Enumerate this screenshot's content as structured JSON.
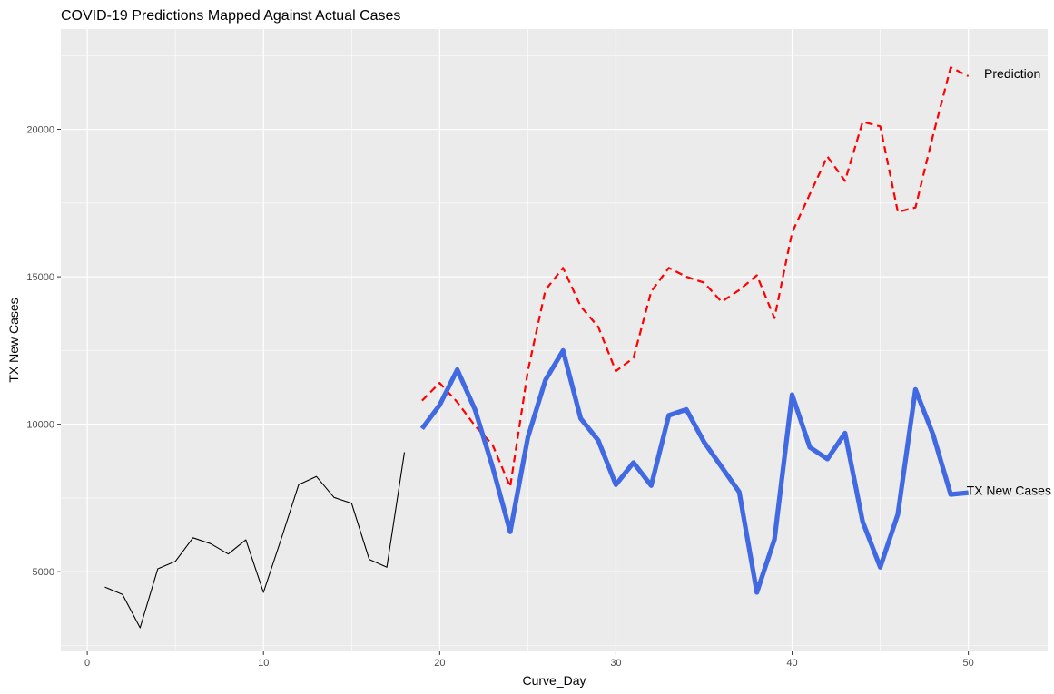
{
  "chart_data": {
    "type": "line",
    "title": "COVID-19 Predictions Mapped Against Actual Cases",
    "xlabel": "Curve_Day",
    "ylabel": "TX New Cases",
    "xlim": [
      -1.5,
      54.5
    ],
    "ylim": [
      2300,
      23400
    ],
    "x_ticks": [
      0,
      10,
      20,
      30,
      40,
      50
    ],
    "x_tick_labels": [
      "0",
      "10",
      "20",
      "30",
      "40",
      "50"
    ],
    "y_ticks": [
      5000,
      10000,
      15000,
      20000
    ],
    "y_tick_labels": [
      "5000",
      "10000",
      "15000",
      "20000"
    ],
    "grid": true,
    "legend": "none",
    "series": [
      {
        "color": "#000000",
        "style": "solid",
        "width": "thin",
        "x": [
          1,
          2,
          3,
          4,
          5,
          6,
          7,
          8,
          9,
          10,
          11,
          12,
          13,
          14,
          15,
          16,
          17,
          18
        ],
        "y": [
          4480,
          4230,
          3100,
          5100,
          5350,
          6150,
          5950,
          5600,
          6080,
          4300,
          6100,
          7950,
          8230,
          7520,
          7320,
          5420,
          5150,
          9050
        ]
      },
      {
        "name": "Prediction",
        "color": "#ff0000",
        "style": "dashed",
        "width": "medium",
        "x": [
          19,
          20,
          21,
          22,
          23,
          24,
          25,
          26,
          27,
          28,
          29,
          30,
          31,
          32,
          33,
          34,
          35,
          36,
          37,
          38,
          39,
          40,
          41,
          42,
          43,
          44,
          45,
          46,
          47,
          48,
          49,
          50
        ],
        "y": [
          10800,
          11400,
          10750,
          9950,
          9300,
          7880,
          11800,
          14550,
          15300,
          14000,
          13300,
          11800,
          12250,
          14500,
          15300,
          15000,
          14800,
          14150,
          14550,
          15050,
          13600,
          16500,
          17800,
          19080,
          18250,
          20250,
          20100,
          17200,
          17350,
          19800,
          22100,
          21800
        ]
      },
      {
        "name": "TX New Cases",
        "color": "#4169e1",
        "style": "solid",
        "width": "thick",
        "x": [
          19,
          20,
          21,
          22,
          23,
          24,
          25,
          26,
          27,
          28,
          29,
          30,
          31,
          32,
          33,
          34,
          35,
          36,
          37,
          38,
          39,
          40,
          41,
          42,
          43,
          44,
          45,
          46,
          47,
          48,
          49,
          50
        ],
        "y": [
          9850,
          10650,
          11850,
          10500,
          8550,
          6350,
          9550,
          11500,
          12500,
          10200,
          9450,
          7950,
          8700,
          7920,
          10300,
          10500,
          9400,
          8550,
          7700,
          4300,
          6100,
          11000,
          9220,
          8820,
          9700,
          6700,
          5150,
          6950,
          11180,
          9650,
          7620,
          7680
        ]
      }
    ],
    "annotations": [
      {
        "text": "Prediction",
        "x": 52.5,
        "y": 21900
      },
      {
        "text": "TX New Cases",
        "x": 52.3,
        "y": 7760
      }
    ]
  }
}
